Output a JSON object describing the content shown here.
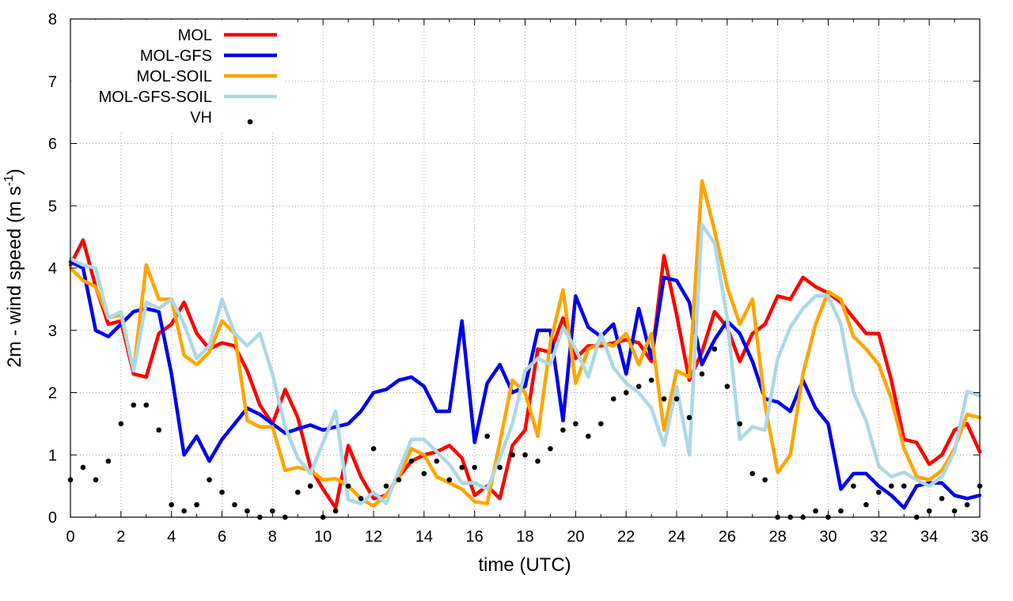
{
  "chart_data": {
    "type": "line",
    "title": "",
    "xlabel": "time (UTC)",
    "ylabel_main": "2m - wind speed  (m s",
    "ylabel_sup": "-1",
    "ylabel_close": ")",
    "xlim": [
      0,
      36
    ],
    "ylim": [
      0,
      8
    ],
    "xticks": [
      "0",
      "2",
      "4",
      "6",
      "8",
      "10",
      "12",
      "14",
      "16",
      "18",
      "20",
      "22",
      "24",
      "26",
      "28",
      "30",
      "32",
      "34",
      "36"
    ],
    "yticks": [
      "0",
      "1",
      "2",
      "3",
      "4",
      "5",
      "6",
      "7",
      "8"
    ],
    "grid": true,
    "legend_position": "top-left",
    "x": [
      0,
      0.5,
      1,
      1.5,
      2,
      2.5,
      3,
      3.5,
      4,
      4.5,
      5,
      5.5,
      6,
      6.5,
      7,
      7.5,
      8,
      8.5,
      9,
      9.5,
      10,
      10.5,
      11,
      11.5,
      12,
      12.5,
      13,
      13.5,
      14,
      14.5,
      15,
      15.5,
      16,
      16.5,
      17,
      17.5,
      18,
      18.5,
      19,
      19.5,
      20,
      20.5,
      21,
      21.5,
      22,
      22.5,
      23,
      23.5,
      24,
      24.5,
      25,
      25.5,
      26,
      26.5,
      27,
      27.5,
      28,
      28.5,
      29,
      29.5,
      30,
      30.5,
      31,
      31.5,
      32,
      32.5,
      33,
      33.5,
      34,
      34.5,
      35,
      35.5,
      36
    ],
    "series": [
      {
        "name": "MOL",
        "color": "#ff0000",
        "kind": "line",
        "values": [
          4.05,
          4.45,
          3.7,
          3.1,
          3.15,
          2.3,
          2.25,
          2.95,
          3.1,
          3.45,
          2.95,
          2.7,
          2.8,
          2.75,
          2.35,
          1.8,
          1.5,
          2.05,
          1.6,
          0.8,
          0.45,
          0.15,
          1.15,
          0.65,
          0.3,
          0.35,
          0.65,
          0.9,
          1.0,
          1.05,
          1.15,
          0.95,
          0.35,
          0.5,
          0.3,
          1.15,
          1.4,
          2.7,
          2.65,
          3.2,
          2.55,
          2.75,
          2.75,
          2.8,
          2.85,
          2.8,
          2.5,
          4.2,
          3.25,
          2.2,
          2.65,
          3.3,
          3.05,
          2.5,
          2.95,
          3.1,
          3.55,
          3.5,
          3.85,
          3.7,
          3.6,
          3.45,
          3.2,
          2.95,
          2.95,
          2.2,
          1.25,
          1.2,
          0.85,
          1.0,
          1.4,
          1.5,
          1.05
        ]
      },
      {
        "name": "MOL-GFS",
        "color": "#0000ee",
        "kind": "line",
        "values": [
          4.1,
          4.0,
          3.0,
          2.9,
          3.1,
          3.3,
          3.35,
          3.3,
          2.3,
          1.0,
          1.3,
          0.9,
          1.25,
          1.5,
          1.75,
          1.65,
          1.5,
          1.35,
          1.42,
          1.48,
          1.4,
          1.45,
          1.5,
          1.7,
          2.0,
          2.05,
          2.2,
          2.25,
          2.1,
          1.7,
          1.7,
          3.15,
          1.2,
          2.15,
          2.45,
          2.0,
          2.1,
          3.0,
          3.0,
          1.55,
          3.55,
          3.05,
          2.9,
          3.1,
          2.3,
          3.35,
          2.55,
          3.85,
          3.8,
          3.45,
          2.45,
          2.85,
          3.15,
          2.95,
          2.5,
          1.9,
          1.85,
          1.7,
          2.2,
          1.75,
          1.5,
          0.45,
          0.7,
          0.7,
          0.5,
          0.35,
          0.15,
          0.5,
          0.55,
          0.55,
          0.35,
          0.3,
          0.35
        ]
      },
      {
        "name": "MOL-SOIL",
        "color": "#ffa500",
        "kind": "line",
        "values": [
          4.0,
          3.8,
          3.7,
          3.2,
          3.25,
          2.35,
          4.05,
          3.5,
          3.5,
          2.6,
          2.45,
          2.65,
          3.15,
          2.95,
          1.55,
          1.45,
          1.45,
          0.75,
          0.8,
          0.75,
          0.6,
          0.62,
          0.5,
          0.3,
          0.18,
          0.35,
          0.65,
          1.1,
          1.0,
          0.65,
          0.55,
          0.45,
          0.25,
          0.22,
          1.2,
          2.2,
          2.0,
          1.3,
          2.8,
          3.65,
          2.15,
          2.7,
          2.8,
          2.75,
          2.95,
          2.45,
          2.95,
          1.4,
          2.35,
          2.25,
          5.4,
          4.6,
          3.7,
          3.1,
          3.5,
          1.8,
          0.72,
          1.0,
          2.3,
          3.1,
          3.62,
          3.5,
          2.9,
          2.7,
          2.45,
          1.9,
          1.1,
          0.65,
          0.6,
          0.75,
          1.1,
          1.65,
          1.6
        ]
      },
      {
        "name": "MOL-GFS-SOIL",
        "color": "#add8e6",
        "kind": "line",
        "values": [
          4.15,
          4.05,
          4.0,
          3.2,
          3.3,
          2.35,
          3.45,
          3.35,
          3.5,
          3.1,
          2.55,
          2.75,
          3.5,
          2.95,
          2.75,
          2.95,
          2.3,
          1.45,
          0.95,
          0.7,
          1.2,
          1.7,
          0.28,
          0.22,
          0.4,
          0.22,
          0.75,
          1.25,
          1.25,
          1.05,
          0.85,
          0.55,
          0.55,
          0.45,
          0.95,
          1.5,
          2.35,
          2.55,
          2.45,
          3.05,
          2.7,
          2.25,
          2.95,
          2.4,
          2.15,
          2.0,
          1.75,
          1.15,
          2.1,
          1.0,
          4.7,
          4.4,
          3.2,
          1.25,
          1.45,
          1.4,
          2.55,
          3.05,
          3.35,
          3.55,
          3.55,
          3.1,
          2.0,
          1.55,
          0.82,
          0.65,
          0.72,
          0.6,
          0.5,
          0.65,
          1.05,
          2.02,
          1.95
        ]
      },
      {
        "name": "VH",
        "color": "#000000",
        "kind": "points",
        "values": [
          0.6,
          0.8,
          0.6,
          0.9,
          1.5,
          1.8,
          1.8,
          1.4,
          0.2,
          0.1,
          0.2,
          0.6,
          0.4,
          0.2,
          0.1,
          0.0,
          0.1,
          0.0,
          0.4,
          0.5,
          0.0,
          0.1,
          0.5,
          0.3,
          1.1,
          0.5,
          0.6,
          0.9,
          0.7,
          0.9,
          0.6,
          0.8,
          0.8,
          1.3,
          0.8,
          1.0,
          1.0,
          0.9,
          1.1,
          1.4,
          1.5,
          1.3,
          1.5,
          1.9,
          2.0,
          2.1,
          2.2,
          1.9,
          1.9,
          1.6,
          2.3,
          2.7,
          2.1,
          1.5,
          0.7,
          0.6,
          0.0,
          0.0,
          0.0,
          0.1,
          0.0,
          0.1,
          0.5,
          0.2,
          0.4,
          0.5,
          0.5,
          0.0,
          0.1,
          0.3,
          0.1,
          0.2,
          0.5
        ]
      }
    ]
  }
}
